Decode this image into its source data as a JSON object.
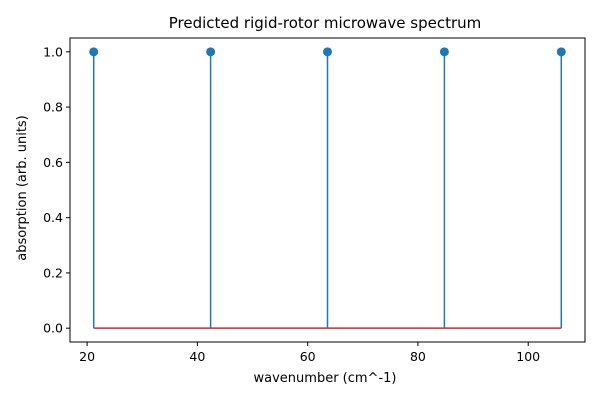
{
  "chart_data": {
    "type": "stem",
    "title": "Predicted rigid-rotor microwave spectrum",
    "xlabel": "wavenumber (cm^-1)",
    "ylabel": "absorption (arb. units)",
    "x": [
      21.2,
      42.4,
      63.6,
      84.8,
      106.0
    ],
    "values": [
      1.0,
      1.0,
      1.0,
      1.0,
      1.0
    ],
    "baseline": 0.0,
    "xlim": [
      16.9,
      110.3
    ],
    "ylim": [
      -0.05,
      1.05
    ],
    "xticks": [
      20,
      40,
      60,
      80,
      100
    ],
    "yticks": [
      0.0,
      0.2,
      0.4,
      0.6,
      0.8,
      1.0
    ],
    "xtick_labels": [
      "20",
      "40",
      "60",
      "80",
      "100"
    ],
    "ytick_labels": [
      "0.0",
      "0.2",
      "0.4",
      "0.6",
      "0.8",
      "1.0"
    ],
    "grid": false,
    "legend": "none",
    "colors": {
      "stem": "#1f77b4",
      "marker": "#1f77b4",
      "baseline": "#d62728",
      "axes": "#000000"
    }
  }
}
